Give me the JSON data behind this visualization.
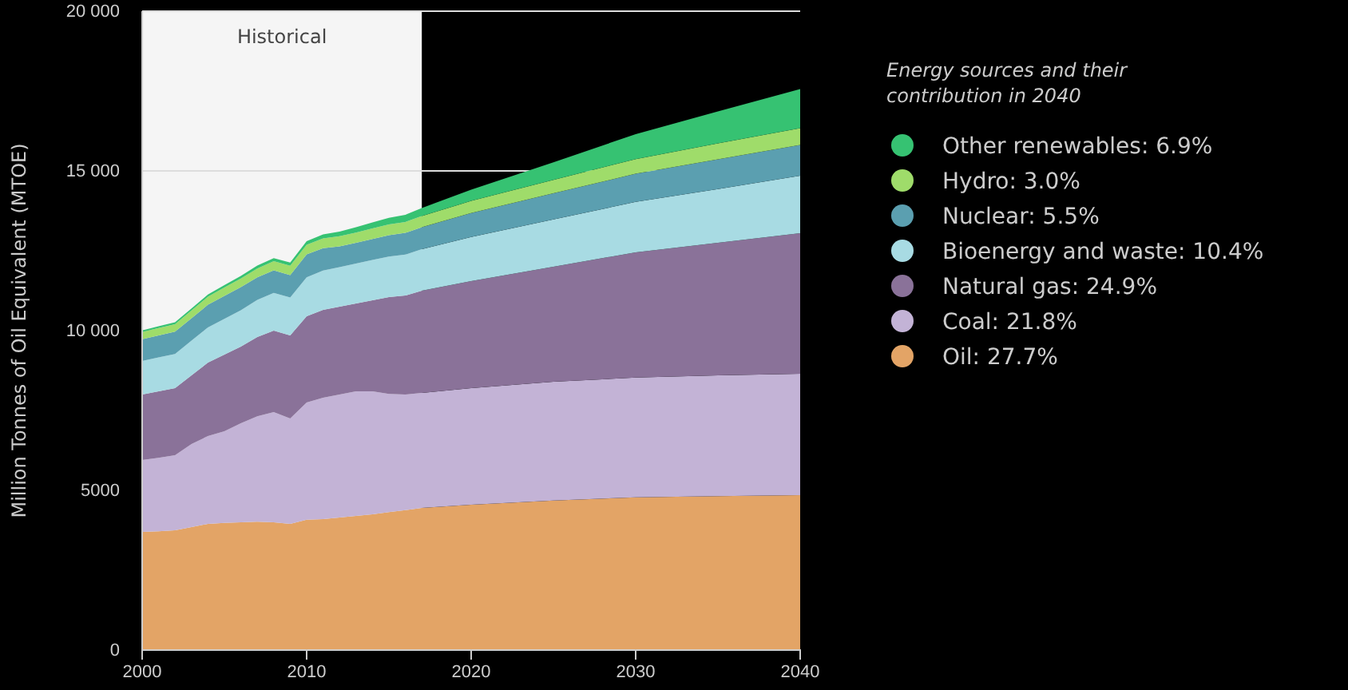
{
  "chart_data": {
    "type": "area",
    "stacked": true,
    "ylabel": "Million Tonnes of Oil Equivalent (MTOE)",
    "legend_title": "Energy sources and their contribution in 2040",
    "legend": "right",
    "grid": "y",
    "x": [
      2000,
      2001,
      2002,
      2003,
      2004,
      2005,
      2006,
      2007,
      2008,
      2009,
      2010,
      2011,
      2012,
      2013,
      2014,
      2015,
      2016,
      2017,
      2020,
      2025,
      2030,
      2035,
      2040
    ],
    "xlim": [
      2000,
      2040
    ],
    "xticks": [
      2000,
      2010,
      2020,
      2030,
      2040
    ],
    "ylim": [
      0,
      20000
    ],
    "yticks": [
      0,
      {
        "value": 5000,
        "label": "5000"
      },
      {
        "value": 10000,
        "label": "10 000"
      },
      {
        "value": 15000,
        "label": "15 000"
      },
      {
        "value": 20000,
        "label": "20 000"
      }
    ],
    "bands": [
      {
        "axis": "x",
        "from": 2000,
        "to": 2017,
        "label": "Historical",
        "color": "#f5f5f5"
      }
    ],
    "series": [
      {
        "name": "Oil: 27.7%",
        "color": "#e3a466",
        "values": [
          3700,
          3720,
          3750,
          3850,
          3950,
          3980,
          4000,
          4020,
          4000,
          3950,
          4080,
          4100,
          4150,
          4200,
          4250,
          4320,
          4380,
          4450,
          4550,
          4680,
          4780,
          4820,
          4850
        ]
      },
      {
        "name": "Coal: 21.8%",
        "color": "#c3b3d6",
        "values": [
          2250,
          2300,
          2350,
          2600,
          2750,
          2870,
          3100,
          3300,
          3450,
          3300,
          3670,
          3800,
          3850,
          3900,
          3850,
          3700,
          3620,
          3600,
          3650,
          3720,
          3750,
          3780,
          3800
        ]
      },
      {
        "name": "Natural gas: 24.9%",
        "color": "#8a7299",
        "values": [
          2050,
          2080,
          2100,
          2150,
          2300,
          2400,
          2400,
          2480,
          2550,
          2600,
          2700,
          2750,
          2750,
          2750,
          2850,
          3030,
          3100,
          3200,
          3350,
          3600,
          3920,
          4150,
          4400
        ]
      },
      {
        "name": "Bioenergy and waste: 10.4%",
        "color": "#a8dbe3",
        "values": [
          1050,
          1060,
          1070,
          1090,
          1100,
          1120,
          1140,
          1160,
          1180,
          1190,
          1220,
          1230,
          1240,
          1250,
          1260,
          1270,
          1280,
          1300,
          1380,
          1480,
          1580,
          1680,
          1800
        ]
      },
      {
        "name": "Nuclear: 5.5%",
        "color": "#5b9fb0",
        "values": [
          680,
          690,
          700,
          700,
          710,
          720,
          720,
          710,
          710,
          700,
          720,
          700,
          650,
          650,
          660,
          670,
          680,
          690,
          750,
          820,
          880,
          930,
          960
        ]
      },
      {
        "name": "Hydro: 3.0%",
        "color": "#9fdc6a",
        "values": [
          225,
          230,
          230,
          240,
          250,
          260,
          270,
          275,
          285,
          290,
          300,
          305,
          315,
          320,
          330,
          335,
          340,
          350,
          380,
          420,
          460,
          500,
          530
        ]
      },
      {
        "name": "Other renewables: 6.9%",
        "color": "#36c272",
        "values": [
          50,
          55,
          60,
          65,
          70,
          75,
          80,
          90,
          95,
          100,
          110,
          125,
          145,
          165,
          185,
          205,
          225,
          250,
          350,
          550,
          780,
          1000,
          1220
        ]
      }
    ]
  }
}
